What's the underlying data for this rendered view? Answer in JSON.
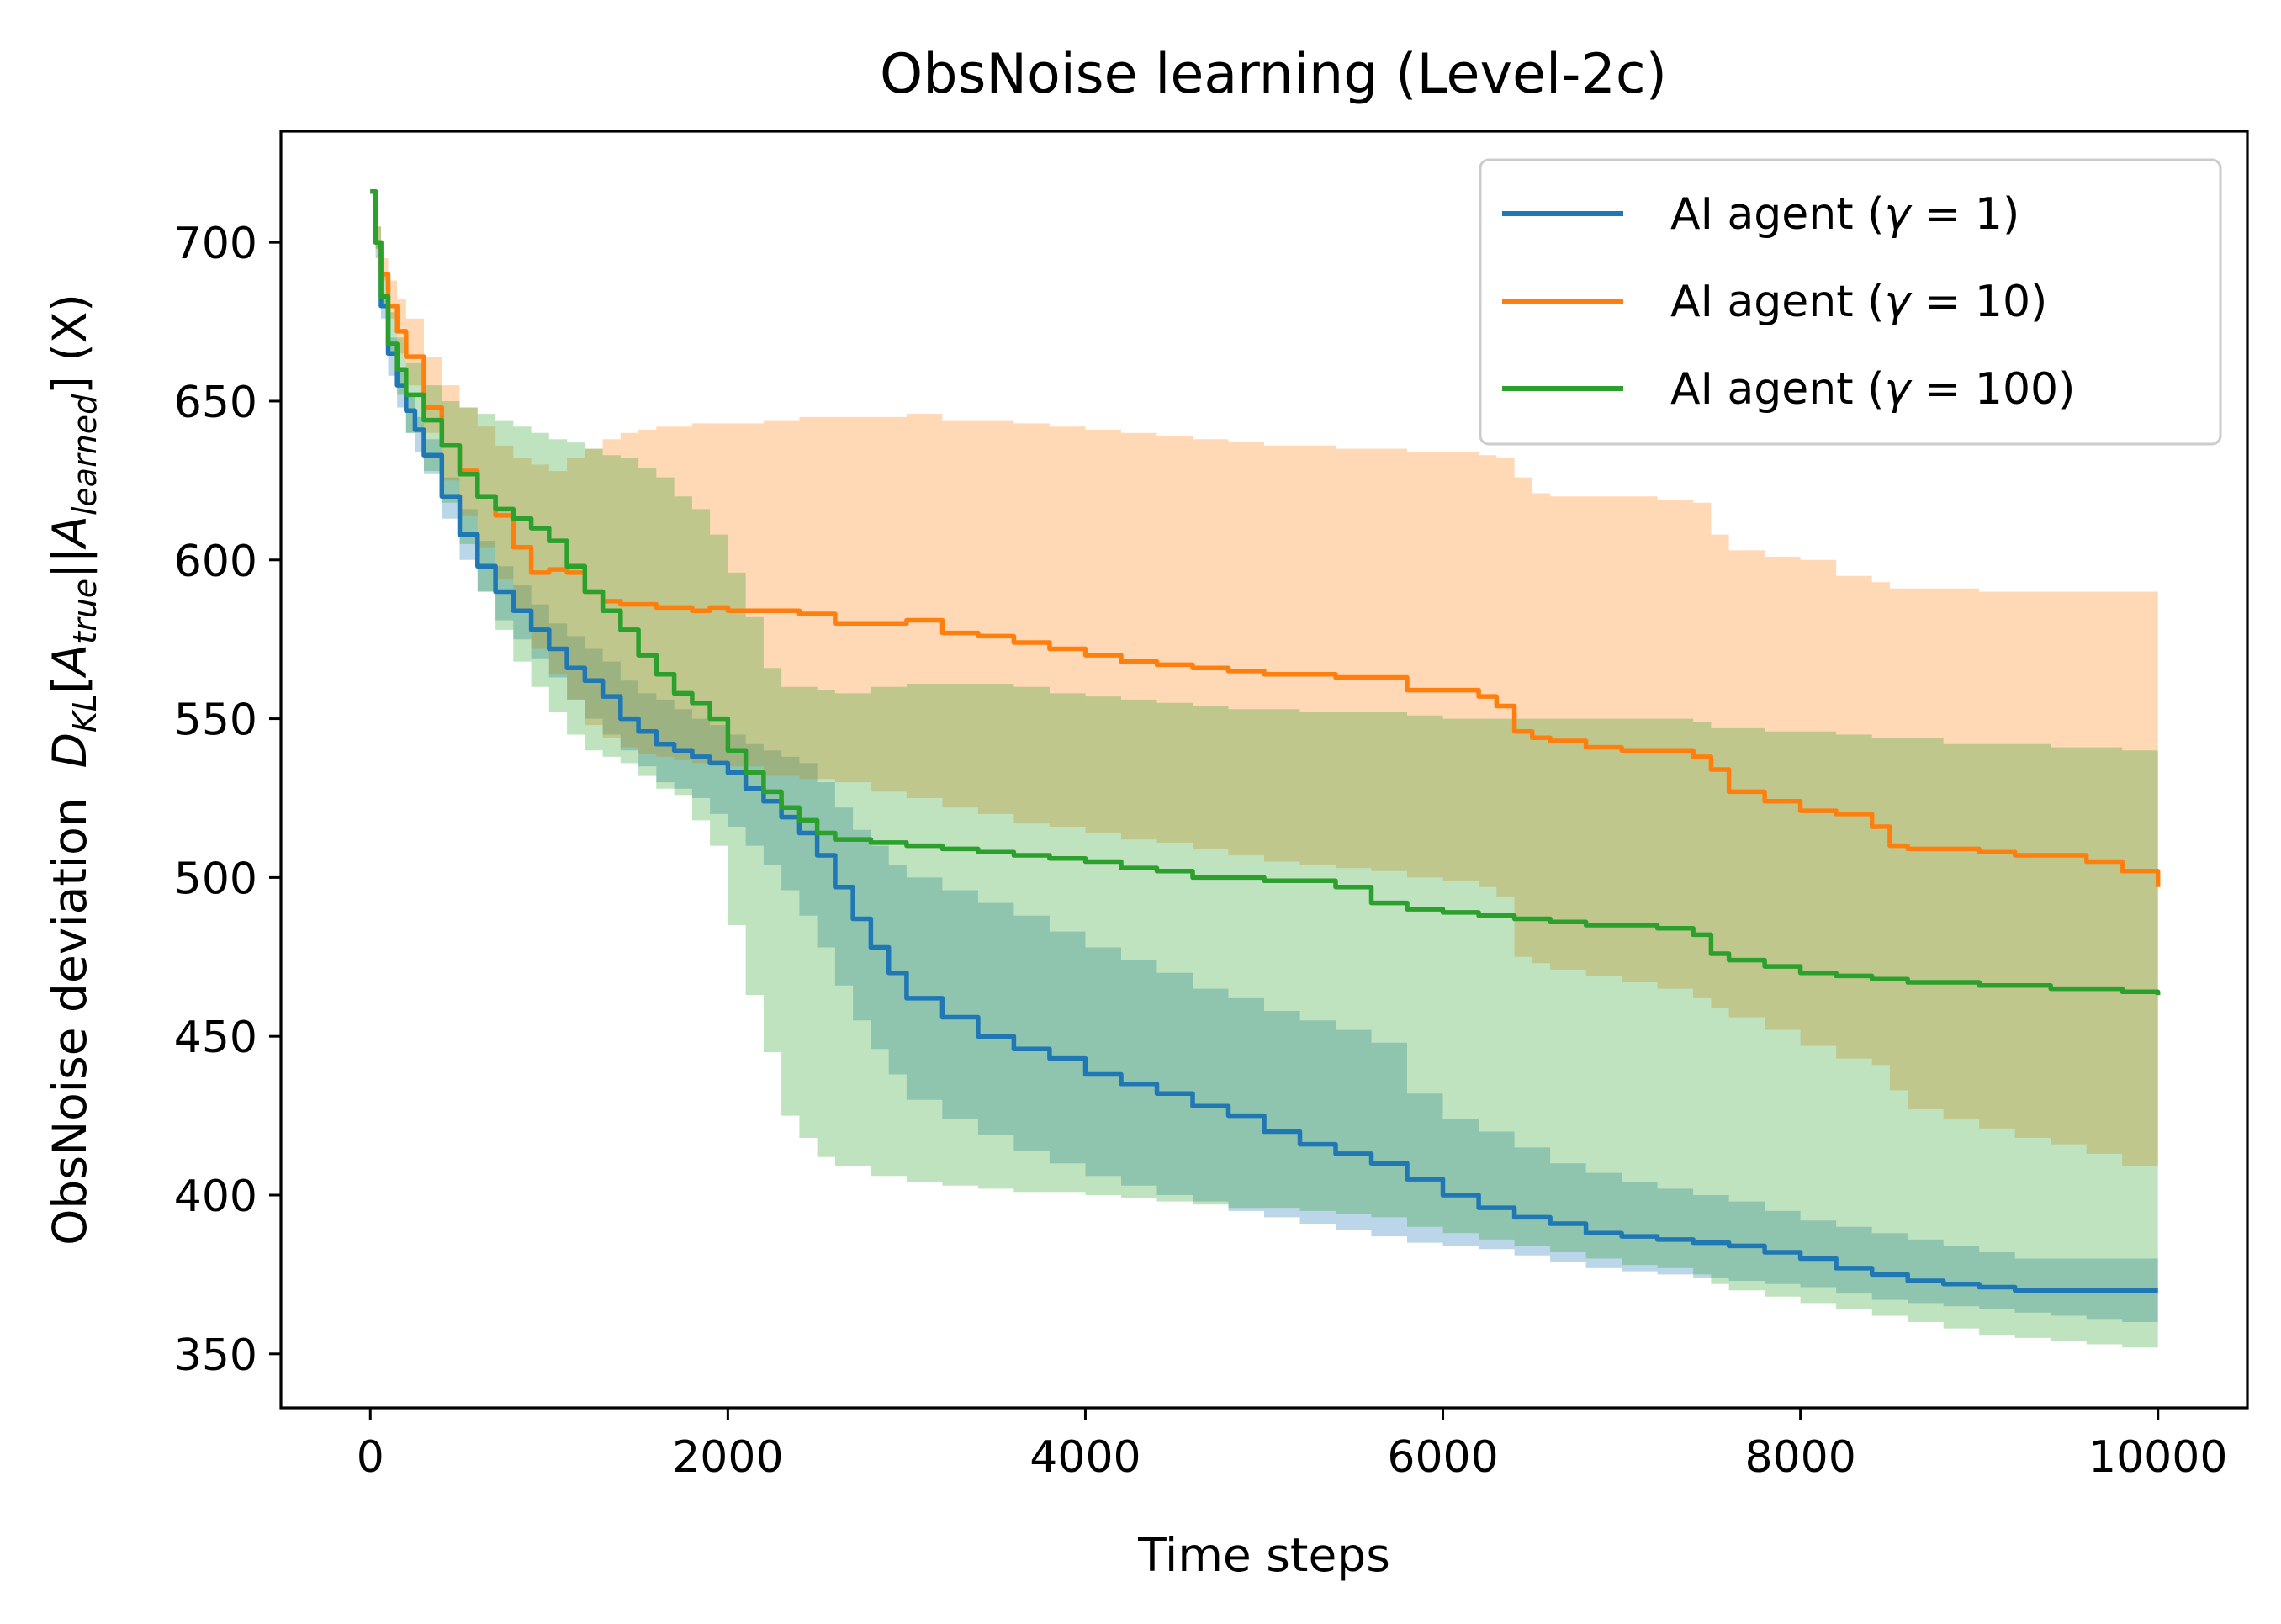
{
  "chart_data": {
    "type": "line",
    "title": "ObsNoise learning (Level-2c)",
    "xlabel": "Time steps",
    "ylabel": "ObsNoise deviation D_KL[A_true||A_learned] (X)",
    "ylabel_parts": {
      "prefix": "ObsNoise deviation  ",
      "D": "D",
      "D_sub": "KL",
      "open": "[",
      "A1": "A",
      "A1_sub": "true",
      "mid": "||",
      "A2": "A",
      "A2_sub": "learned",
      "close": "]",
      "suffix": " (X)"
    },
    "xlim": [
      -500,
      10500
    ],
    "ylim": [
      333,
      735
    ],
    "xticks": [
      0,
      2000,
      4000,
      6000,
      8000,
      10000
    ],
    "xtick_labels": [
      "0",
      "2000",
      "4000",
      "6000",
      "8000",
      "10000"
    ],
    "yticks": [
      350,
      400,
      450,
      500,
      550,
      600,
      650,
      700
    ],
    "ytick_labels": [
      "350",
      "400",
      "450",
      "500",
      "550",
      "600",
      "650",
      "700"
    ],
    "grid": false,
    "legend_position": "top-right",
    "series": [
      {
        "name": "AI agent (γ = 1)",
        "legend": {
          "prefix": "AI agent (",
          "symbol": "γ",
          "suffix": " = 1)"
        },
        "color": "#1f77b4",
        "x": [
          0,
          30,
          60,
          100,
          150,
          200,
          250,
          300,
          400,
          500,
          600,
          700,
          800,
          900,
          1000,
          1100,
          1200,
          1300,
          1400,
          1500,
          1600,
          1700,
          1800,
          1900,
          2000,
          2100,
          2200,
          2300,
          2400,
          2500,
          2600,
          2700,
          2800,
          2900,
          3000,
          3200,
          3400,
          3600,
          3800,
          4000,
          4200,
          4400,
          4600,
          4800,
          5000,
          5200,
          5400,
          5600,
          5800,
          6000,
          6200,
          6400,
          6600,
          6800,
          7000,
          7200,
          7400,
          7600,
          7800,
          8000,
          8200,
          8400,
          8600,
          8800,
          9000,
          9200,
          9400,
          9600,
          9800,
          10000
        ],
        "y": [
          716,
          700,
          680,
          665,
          655,
          647,
          641,
          633,
          620,
          608,
          598,
          590,
          584,
          578,
          572,
          566,
          562,
          557,
          550,
          546,
          542,
          540,
          538,
          536,
          533,
          528,
          524,
          519,
          514,
          507,
          497,
          487,
          478,
          470,
          462,
          456,
          450,
          446,
          443,
          438,
          435,
          432,
          428,
          425,
          420,
          416,
          413,
          410,
          405,
          400,
          396,
          393,
          391,
          388,
          387,
          386,
          385,
          384,
          382,
          380,
          377,
          375,
          373,
          372,
          371,
          370,
          370,
          370,
          370,
          370
        ],
        "upper": [
          716,
          700,
          683,
          670,
          660,
          652,
          645,
          638,
          626,
          616,
          606,
          598,
          592,
          586,
          580,
          576,
          572,
          568,
          562,
          558,
          556,
          553,
          550,
          548,
          545,
          542,
          540,
          538,
          536,
          530,
          522,
          515,
          510,
          504,
          500,
          496,
          492,
          488,
          483,
          478,
          474,
          470,
          465,
          462,
          458,
          455,
          452,
          448,
          432,
          424,
          420,
          415,
          410,
          407,
          404,
          402,
          400,
          398,
          395,
          392,
          390,
          388,
          386,
          384,
          382,
          380,
          380,
          380,
          380,
          380
        ],
        "lower": [
          716,
          695,
          676,
          658,
          648,
          640,
          634,
          627,
          613,
          600,
          590,
          581,
          575,
          569,
          563,
          556,
          550,
          545,
          540,
          535,
          530,
          528,
          525,
          520,
          516,
          510,
          504,
          496,
          488,
          478,
          466,
          455,
          446,
          438,
          430,
          424,
          419,
          414,
          410,
          406,
          403,
          400,
          398,
          395,
          393,
          391,
          389,
          387,
          385,
          384,
          383,
          381,
          379,
          377,
          376,
          375,
          374,
          373,
          372,
          371,
          369,
          367,
          366,
          365,
          364,
          363,
          362,
          361,
          360,
          360
        ]
      },
      {
        "name": "AI agent (γ = 10)",
        "legend": {
          "prefix": "AI agent (",
          "symbol": "γ",
          "suffix": " = 10)"
        },
        "color": "#ff7f0e",
        "x": [
          0,
          30,
          60,
          100,
          150,
          200,
          300,
          400,
          500,
          600,
          700,
          800,
          900,
          1000,
          1100,
          1200,
          1300,
          1400,
          1500,
          1600,
          1700,
          1800,
          1900,
          2000,
          2200,
          2400,
          2600,
          2800,
          3000,
          3200,
          3400,
          3600,
          3800,
          4000,
          4200,
          4400,
          4600,
          4800,
          5000,
          5200,
          5400,
          5600,
          5800,
          6000,
          6200,
          6300,
          6400,
          6500,
          6600,
          6800,
          7000,
          7200,
          7400,
          7500,
          7600,
          7800,
          8000,
          8200,
          8400,
          8500,
          8600,
          8800,
          9000,
          9200,
          9400,
          9600,
          9800,
          10000
        ],
        "y": [
          716,
          700,
          690,
          680,
          672,
          664,
          648,
          636,
          628,
          620,
          614,
          604,
          596,
          597,
          596,
          590,
          587,
          586,
          586,
          585,
          585,
          584,
          585,
          584,
          584,
          583,
          580,
          580,
          581,
          577,
          576,
          574,
          572,
          570,
          568,
          567,
          566,
          565,
          564,
          564,
          563,
          563,
          559,
          559,
          557,
          554,
          546,
          544,
          543,
          541,
          540,
          540,
          538,
          534,
          527,
          524,
          521,
          520,
          516,
          510,
          509,
          509,
          508,
          507,
          507,
          505,
          502,
          497
        ],
        "upper": [
          716,
          705,
          695,
          688,
          682,
          676,
          664,
          655,
          648,
          642,
          636,
          632,
          630,
          628,
          632,
          635,
          638,
          640,
          641,
          642,
          642,
          643,
          643,
          643,
          644,
          645,
          645,
          645,
          646,
          644,
          644,
          643,
          642,
          641,
          640,
          639,
          638,
          637,
          636,
          636,
          635,
          635,
          634,
          634,
          633,
          632,
          626,
          621,
          620,
          620,
          620,
          619,
          618,
          608,
          603,
          601,
          600,
          595,
          593,
          591,
          591,
          591,
          590,
          590,
          590,
          590,
          590,
          590
        ],
        "lower": [
          716,
          698,
          688,
          676,
          665,
          655,
          640,
          625,
          614,
          604,
          594,
          584,
          572,
          564,
          556,
          548,
          544,
          541,
          539,
          538,
          537,
          536,
          536,
          535,
          532,
          531,
          530,
          527,
          525,
          522,
          520,
          517,
          516,
          514,
          512,
          511,
          509,
          507,
          505,
          504,
          503,
          502,
          500,
          499,
          497,
          494,
          475,
          473,
          471,
          469,
          467,
          465,
          462,
          459,
          456,
          452,
          447,
          443,
          441,
          433,
          427,
          424,
          421,
          418,
          416,
          413,
          409,
          405
        ]
      },
      {
        "name": "AI agent (γ = 100)",
        "legend": {
          "prefix": "AI agent (",
          "symbol": "γ",
          "suffix": " = 100)"
        },
        "color": "#2ca02c",
        "x": [
          0,
          30,
          60,
          100,
          150,
          200,
          300,
          400,
          500,
          600,
          700,
          800,
          900,
          1000,
          1100,
          1200,
          1300,
          1400,
          1500,
          1600,
          1700,
          1800,
          1900,
          2000,
          2100,
          2200,
          2300,
          2400,
          2500,
          2600,
          2800,
          3000,
          3200,
          3400,
          3600,
          3800,
          4000,
          4200,
          4400,
          4600,
          4800,
          5000,
          5200,
          5400,
          5600,
          5800,
          6000,
          6200,
          6400,
          6600,
          6800,
          7000,
          7200,
          7400,
          7500,
          7600,
          7800,
          8000,
          8200,
          8400,
          8600,
          8800,
          9000,
          9200,
          9400,
          9600,
          9800,
          10000
        ],
        "y": [
          716,
          700,
          683,
          668,
          660,
          652,
          644,
          636,
          627,
          620,
          616,
          613,
          610,
          606,
          598,
          590,
          584,
          578,
          570,
          564,
          558,
          555,
          550,
          540,
          533,
          527,
          522,
          518,
          514,
          512,
          511,
          510,
          509,
          508,
          507,
          506,
          505,
          503,
          502,
          500,
          500,
          499,
          499,
          497,
          492,
          490,
          489,
          488,
          487,
          486,
          485,
          485,
          484,
          482,
          476,
          474,
          472,
          470,
          469,
          468,
          467,
          467,
          466,
          466,
          465,
          465,
          464,
          463
        ],
        "upper": [
          716,
          705,
          690,
          678,
          670,
          662,
          655,
          650,
          648,
          646,
          644,
          642,
          640,
          638,
          637,
          635,
          633,
          632,
          629,
          626,
          620,
          616,
          608,
          596,
          582,
          566,
          560,
          560,
          559,
          558,
          560,
          561,
          561,
          561,
          560,
          558,
          557,
          556,
          555,
          554,
          553,
          553,
          552,
          552,
          552,
          551,
          550,
          550,
          550,
          550,
          550,
          550,
          550,
          549,
          547,
          547,
          546,
          546,
          545,
          544,
          544,
          542,
          542,
          542,
          541,
          541,
          540,
          540
        ],
        "lower": [
          716,
          698,
          680,
          665,
          652,
          640,
          628,
          618,
          605,
          590,
          578,
          568,
          560,
          552,
          545,
          540,
          538,
          536,
          532,
          528,
          526,
          518,
          510,
          485,
          463,
          445,
          425,
          418,
          412,
          409,
          406,
          404,
          403,
          402,
          401,
          401,
          400,
          399,
          398,
          397,
          396,
          396,
          395,
          394,
          393,
          390,
          388,
          386,
          384,
          382,
          380,
          378,
          377,
          375,
          372,
          370,
          368,
          366,
          364,
          362,
          360,
          358,
          356,
          355,
          354,
          353,
          352,
          351
        ]
      }
    ]
  }
}
